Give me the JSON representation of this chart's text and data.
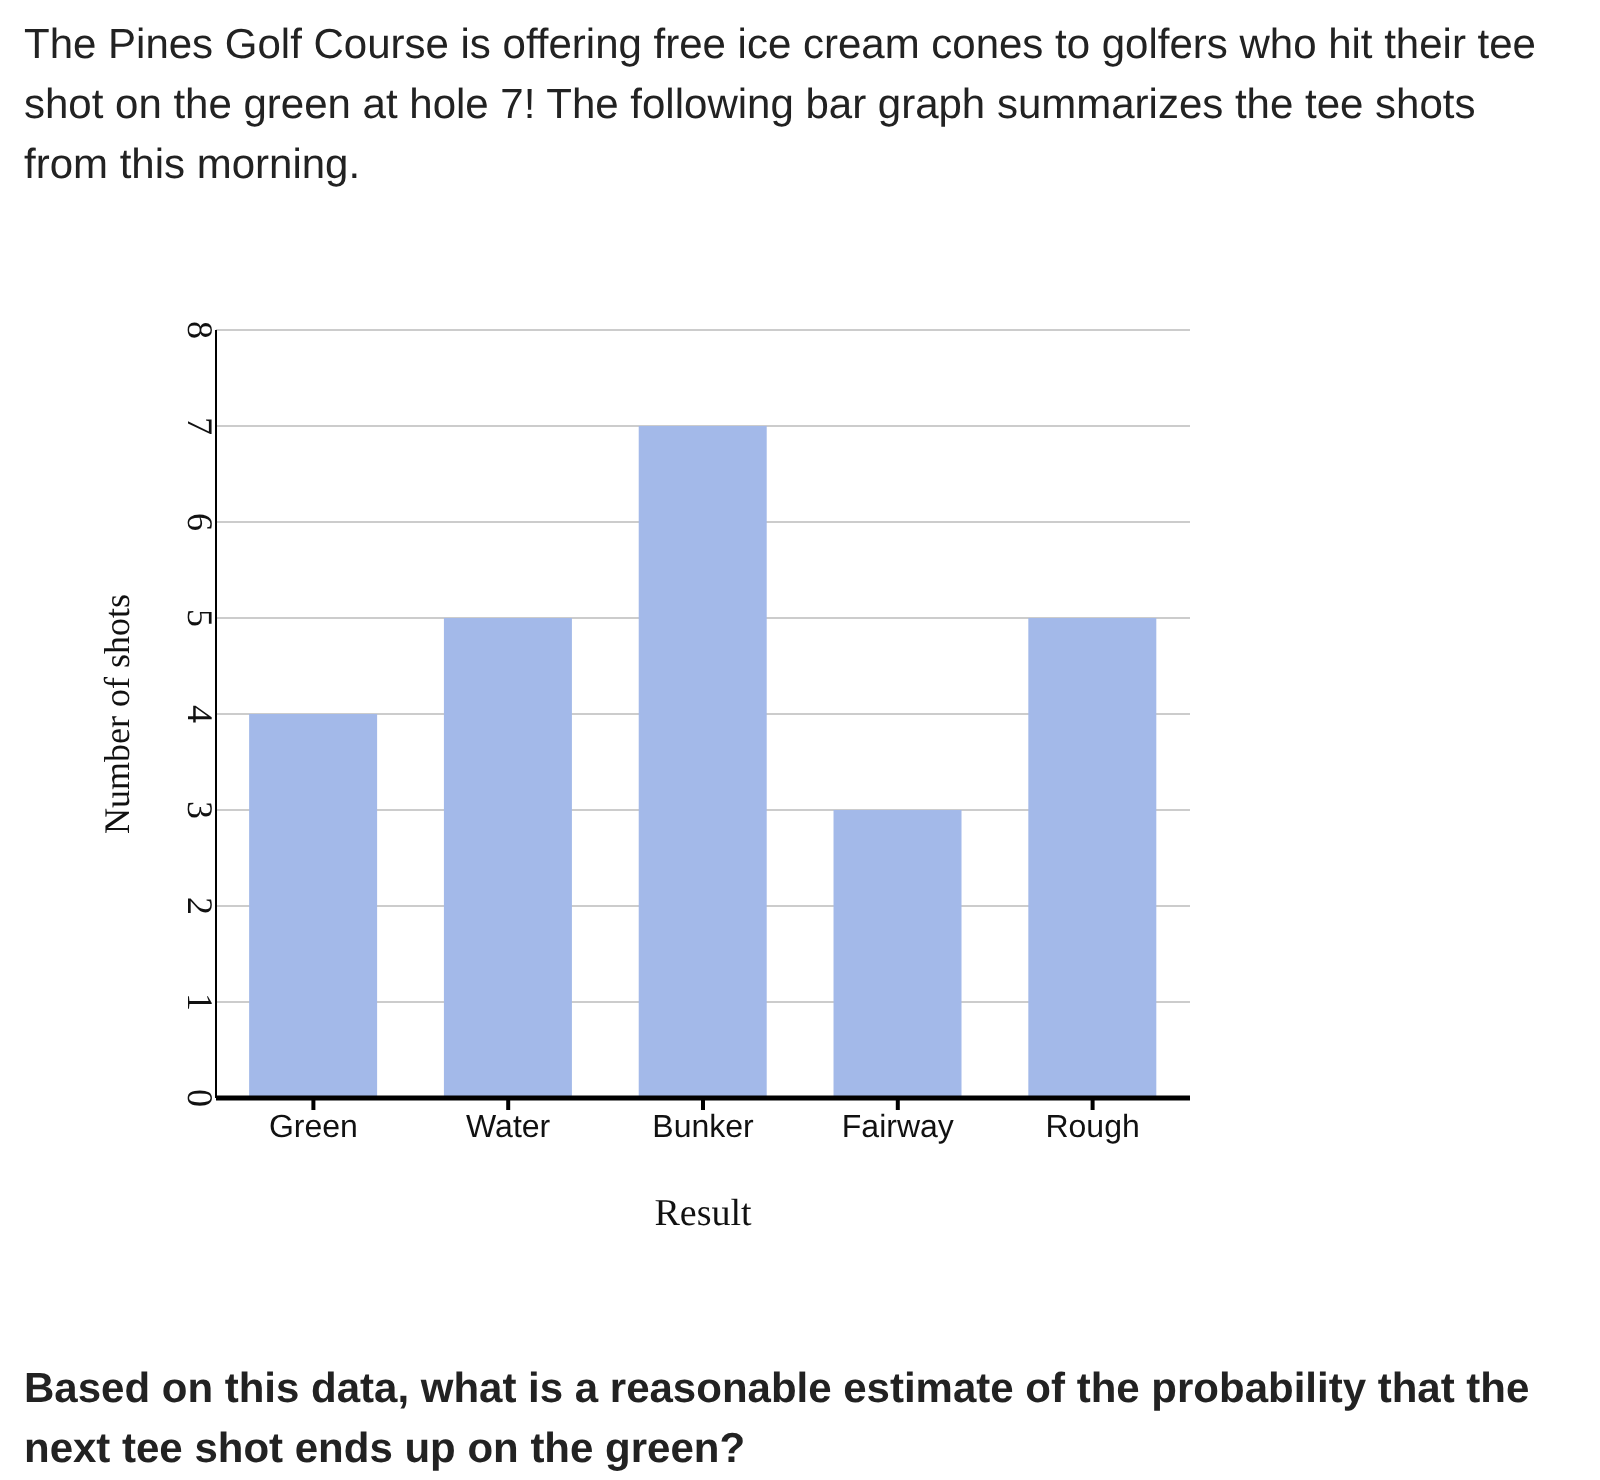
{
  "chart_data": {
    "type": "bar",
    "title": "The Pines Golf Course is offering free ice cream cones to golfers who hit their tee shot on the green at hole 7! The following bar graph summarizes the tee shots from this morning.",
    "xlabel": "Result",
    "ylabel": "Number of shots",
    "categories": [
      "Green",
      "Water",
      "Bunker",
      "Fairway",
      "Rough"
    ],
    "values": [
      4,
      5,
      7,
      3,
      5
    ],
    "color": "#a3b9e9",
    "ylim": [
      0,
      8
    ],
    "yticks": [
      0,
      1,
      2,
      3,
      4,
      5,
      6,
      7,
      8
    ],
    "grid": "y",
    "annotations": [
      "Based on this data, what is a reasonable estimate of the probability that the next tee shot ends up on the green?"
    ]
  }
}
